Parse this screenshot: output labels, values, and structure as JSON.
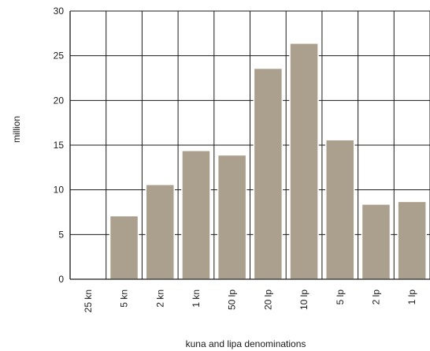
{
  "chart_data": {
    "type": "bar",
    "categories": [
      "25 kn",
      "5 kn",
      "2 kn",
      "1 kn",
      "50 lp",
      "20 lp",
      "10 lp",
      "5 lp",
      "2 lp",
      "1 lp"
    ],
    "values": [
      0,
      7.1,
      10.6,
      14.4,
      13.9,
      23.6,
      26.4,
      15.6,
      8.4,
      8.7
    ],
    "xlabel": "kuna and lipa denominations",
    "ylabel": "million",
    "yticks": [
      "0",
      "5",
      "10",
      "15",
      "20",
      "25",
      "30"
    ],
    "ylim": [
      0,
      30
    ],
    "grid": true,
    "colors": {
      "bar": "#aba08e",
      "grid": "#1a1a1a"
    }
  }
}
